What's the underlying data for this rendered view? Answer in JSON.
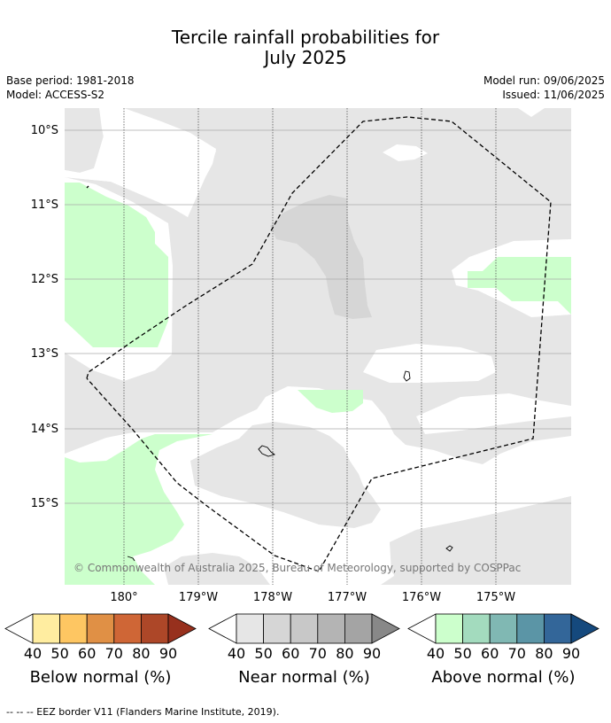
{
  "title_line1": "Tercile rainfall probabilities for",
  "title_line2": "July 2025",
  "base_period": "Base period: 1981-2018",
  "model": "Model: ACCESS-S2",
  "model_run": "Model run: 09/06/2025",
  "issued": "Issued: 11/06/2025",
  "copyright": "© Commonwealth of Australia 2025, Bureau of Meteorology, supported by COSPPac",
  "footer": "--  --  -- EEZ border V11 (Flanders Marine Institute, 2019).",
  "map": {
    "lat_labels": [
      "10°S",
      "11°S",
      "12°S",
      "13°S",
      "14°S",
      "15°S"
    ],
    "lon_labels": [
      "180°",
      "179°W",
      "178°W",
      "177°W",
      "176°W",
      "175°W"
    ],
    "colors": {
      "near_normal_40": "#e6e6e6",
      "near_normal_50": "#d6d6d6",
      "above_normal_40": "#ccffcc",
      "eez_border": "#000000",
      "grid": "#aaaaaa"
    }
  },
  "colorbars": [
    {
      "name": "Below normal (%)",
      "ticks": [
        "40",
        "50",
        "60",
        "70",
        "80",
        "90"
      ],
      "colors": [
        "#ffeda0",
        "#fec662",
        "#e09045",
        "#cf6636",
        "#ad4728",
        "#97301d"
      ]
    },
    {
      "name": "Near normal (%)",
      "ticks": [
        "40",
        "50",
        "60",
        "70",
        "80",
        "90"
      ],
      "colors": [
        "#e6e6e6",
        "#d6d6d6",
        "#c8c8c8",
        "#b4b4b4",
        "#a4a4a4",
        "#888888"
      ]
    },
    {
      "name": "Above normal (%)",
      "ticks": [
        "40",
        "50",
        "60",
        "70",
        "80",
        "90"
      ],
      "colors": [
        "#ccffcc",
        "#a3dbbe",
        "#80b8b3",
        "#5b95a6",
        "#336699",
        "#15497d"
      ]
    }
  ]
}
